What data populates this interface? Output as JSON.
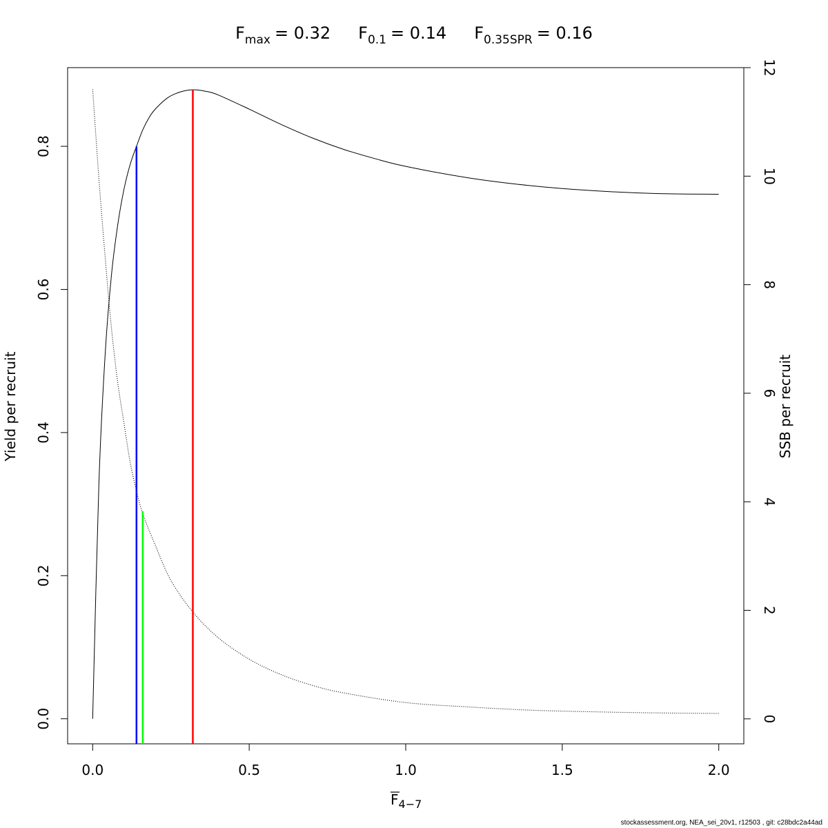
{
  "chart_data": {
    "type": "line",
    "title_parts": [
      {
        "symbol": "F",
        "subscript": "max",
        "value": "= 0.32"
      },
      {
        "symbol": "F",
        "subscript": "0.1",
        "value": "= 0.14"
      },
      {
        "symbol": "F",
        "subscript": "0.35SPR",
        "value": "= 0.16"
      }
    ],
    "xlabel": {
      "symbol": "F",
      "subscript": "4−7"
    },
    "ylabel_left": "Yield per recruit",
    "ylabel_right": "SSB per recruit",
    "xlim": [
      -0.08,
      2.08
    ],
    "ylim_left": [
      -0.035,
      0.91
    ],
    "ylim_right": [
      -0.46,
      12.0
    ],
    "x_ticks": [
      0.0,
      0.5,
      1.0,
      1.5,
      2.0
    ],
    "x_tick_labels": [
      "0.0",
      "0.5",
      "1.0",
      "1.5",
      "2.0"
    ],
    "y_left_ticks": [
      0.0,
      0.2,
      0.4,
      0.6,
      0.8
    ],
    "y_left_tick_labels": [
      "0.0",
      "0.2",
      "0.4",
      "0.6",
      "0.8"
    ],
    "y_right_ticks": [
      0,
      2,
      4,
      6,
      8,
      10,
      12
    ],
    "y_right_tick_labels": [
      "0",
      "2",
      "4",
      "6",
      "8",
      "10",
      "12"
    ],
    "series": [
      {
        "role": "yield-per-recruit",
        "axis": "left",
        "style": "solid",
        "color": "#000000",
        "x": [
          0.0,
          0.02,
          0.04,
          0.06,
          0.08,
          0.1,
          0.12,
          0.14,
          0.16,
          0.18,
          0.2,
          0.24,
          0.28,
          0.32,
          0.36,
          0.4,
          0.5,
          0.6,
          0.7,
          0.8,
          0.9,
          1.0,
          1.2,
          1.4,
          1.6,
          1.8,
          2.0
        ],
        "y": [
          0.0,
          0.33,
          0.51,
          0.62,
          0.69,
          0.74,
          0.775,
          0.8,
          0.823,
          0.84,
          0.852,
          0.868,
          0.876,
          0.879,
          0.877,
          0.872,
          0.852,
          0.831,
          0.812,
          0.796,
          0.783,
          0.772,
          0.756,
          0.745,
          0.738,
          0.734,
          0.733
        ]
      },
      {
        "role": "ssb-per-recruit",
        "axis": "right",
        "style": "dotted",
        "color": "#000000",
        "x": [
          0.0,
          0.02,
          0.04,
          0.06,
          0.08,
          0.1,
          0.12,
          0.14,
          0.16,
          0.2,
          0.25,
          0.32,
          0.4,
          0.5,
          0.6,
          0.7,
          0.8,
          1.0,
          1.2,
          1.4,
          1.6,
          1.8,
          2.0
        ],
        "y": [
          11.6,
          9.95,
          8.5,
          7.2,
          6.2,
          5.45,
          4.72,
          4.2,
          3.78,
          3.2,
          2.55,
          1.97,
          1.5,
          1.1,
          0.82,
          0.62,
          0.48,
          0.3,
          0.22,
          0.16,
          0.13,
          0.11,
          0.1
        ]
      }
    ],
    "reference_lines": [
      {
        "label": "F0.1",
        "x": 0.14,
        "y_top": 0.8,
        "color": "#0000ff"
      },
      {
        "label": "F0.35SPR",
        "x": 0.16,
        "y_top": 0.29,
        "color": "#00ff00"
      },
      {
        "label": "Fmax",
        "x": 0.32,
        "y_top": 0.879,
        "color": "#ff0000"
      }
    ]
  },
  "footer_text": "stockassessment.org, NEA_sei_20v1, r12503 , git: c28bdc2a44ad"
}
